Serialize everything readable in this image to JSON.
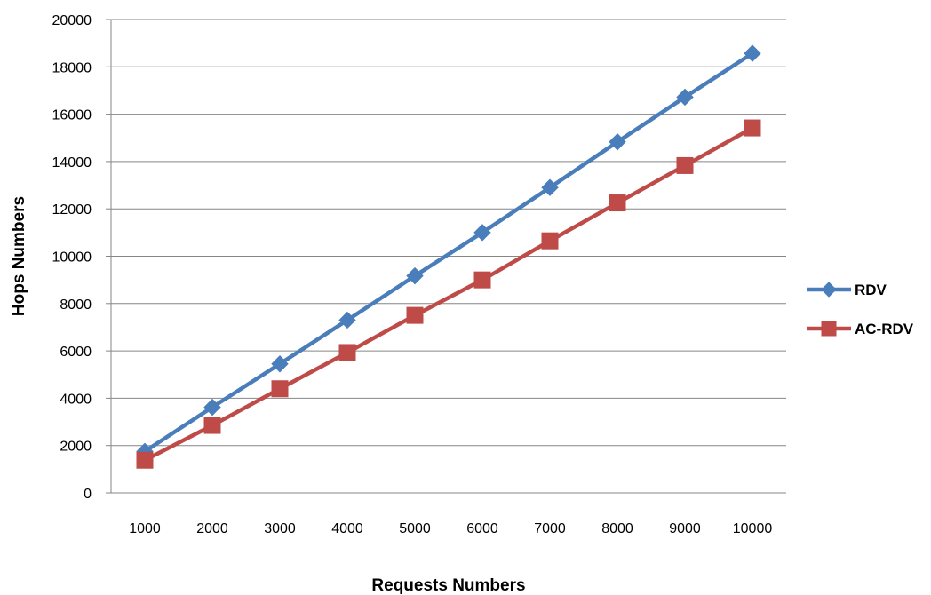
{
  "chart_data": {
    "type": "line",
    "title": "",
    "xlabel": "Requests Numbers",
    "ylabel": "Hops Numbers",
    "categories": [
      "1000",
      "2000",
      "3000",
      "4000",
      "5000",
      "6000",
      "7000",
      "8000",
      "9000",
      "10000"
    ],
    "ylim": [
      0,
      20000
    ],
    "yticks": [
      "0",
      "2000",
      "4000",
      "6000",
      "8000",
      "10000",
      "12000",
      "14000",
      "16000",
      "18000",
      "20000"
    ],
    "grid": "horizontal",
    "legend_position": "right",
    "series": [
      {
        "name": "RDV",
        "color": "#4A7EBB",
        "marker": "diamond",
        "values": [
          1750,
          3620,
          5450,
          7300,
          9170,
          11000,
          12900,
          14830,
          16720,
          18570
        ]
      },
      {
        "name": "AC-RDV",
        "color": "#BE4B48",
        "marker": "square",
        "values": [
          1380,
          2850,
          4400,
          5930,
          7500,
          9000,
          10650,
          12250,
          13830,
          15420
        ]
      }
    ]
  }
}
